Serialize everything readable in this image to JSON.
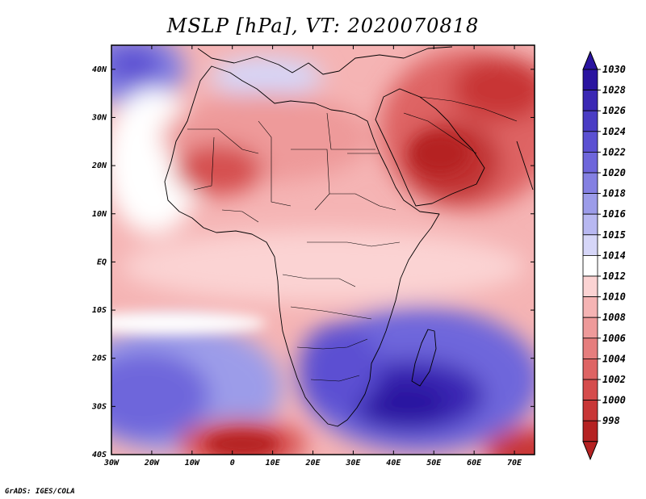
{
  "title": "MSLP [hPa], VT: 2020070818",
  "footer": "GrADS: IGES/COLA",
  "map": {
    "region": "Africa and Middle East",
    "variable": "Mean sea level pressure",
    "units": "hPa",
    "valid_time": "2020070818",
    "lon_range": [
      -30,
      75
    ],
    "lat_range": [
      -40,
      45
    ],
    "x_ticks": [
      "30W",
      "20W",
      "10W",
      "0",
      "10E",
      "20E",
      "30E",
      "40E",
      "50E",
      "60E",
      "70E"
    ],
    "y_ticks": [
      "40N",
      "30N",
      "20N",
      "10N",
      "EQ",
      "10S",
      "20S",
      "30S",
      "40S"
    ],
    "features": {
      "high_pressure": [
        "South Atlantic high",
        "South Indian Ocean high (~1030)",
        "Azores high edge (NW)"
      ],
      "low_pressure": [
        "Arabian Peninsula / Middle East heat low (~1000)",
        "Saharan heat low (~1002)"
      ]
    }
  },
  "colorbar": {
    "labels": [
      "1030",
      "1028",
      "1026",
      "1024",
      "1022",
      "1020",
      "1018",
      "1016",
      "1015",
      "1014",
      "1012",
      "1010",
      "1008",
      "1006",
      "1004",
      "1002",
      "1000",
      "998"
    ],
    "colors": {
      "c1030": "#2a14a0",
      "c1028": "#3a28b4",
      "c1026": "#4a3cc4",
      "c1024": "#5b50d2",
      "c1022": "#6e66db",
      "c1020": "#8480e2",
      "c1018": "#9c9ce9",
      "c1016": "#b8b8f1",
      "c1015": "#d6d6f8",
      "c1014": "#ffffff",
      "c1012": "#fbd3d3",
      "c1010": "#f5b4b4",
      "c1008": "#ee9a9a",
      "c1006": "#e67e7e",
      "c1004": "#de6464",
      "c1002": "#d54c4c",
      "c1000": "#c83636",
      "c998": "#b52222"
    }
  }
}
